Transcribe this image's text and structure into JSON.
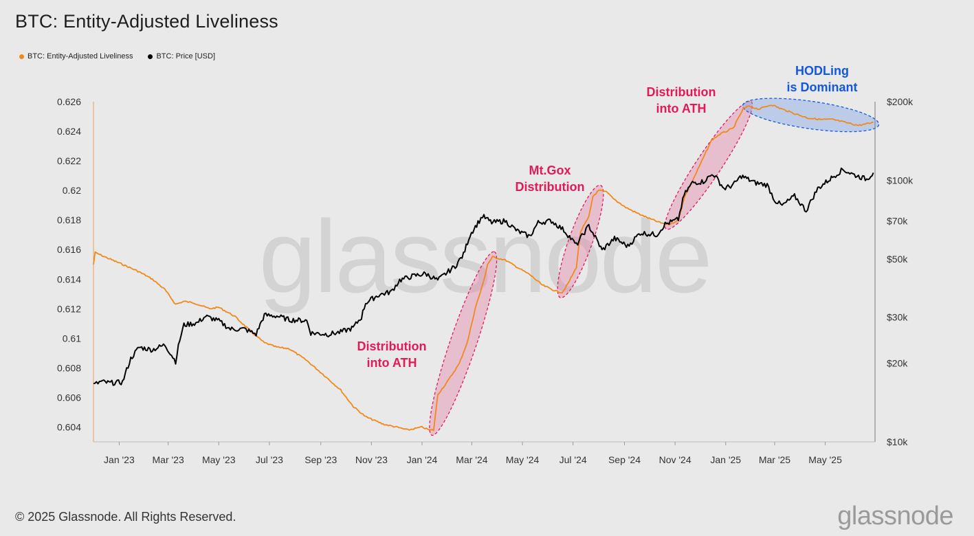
{
  "title": "BTC: Entity-Adjusted Liveliness",
  "legend": [
    {
      "label": "BTC: Entity-Adjusted Liveliness",
      "color": "#f0891a"
    },
    {
      "label": "BTC: Price [USD]",
      "color": "#000000"
    }
  ],
  "footer": "© 2025 Glassnode. All Rights Reserved.",
  "brand": "glassnode",
  "watermark": "glassnode",
  "chart_data": {
    "type": "line",
    "title": "BTC: Entity-Adjusted Liveliness",
    "x_ticks": [
      "Jan '23",
      "Mar '23",
      "May '23",
      "Jul '23",
      "Sep '23",
      "Nov '23",
      "Jan '24",
      "Mar '24",
      "May '24",
      "Jul '24",
      "Sep '24",
      "Nov '24",
      "Jan '25",
      "Mar '25",
      "May '25"
    ],
    "y_left_ticks": [
      "0.604",
      "0.606",
      "0.608",
      "0.61",
      "0.612",
      "0.614",
      "0.616",
      "0.618",
      "0.62",
      "0.622",
      "0.624",
      "0.626"
    ],
    "y_left_range": [
      0.603,
      0.626
    ],
    "y_right_ticks": [
      {
        "label": "$10k",
        "value": 10000
      },
      {
        "label": "$20k",
        "value": 20000
      },
      {
        "label": "$30k",
        "value": 30000
      },
      {
        "label": "$50k",
        "value": 50000
      },
      {
        "label": "$70k",
        "value": 70000
      },
      {
        "label": "$100k",
        "value": 100000
      },
      {
        "label": "$200k",
        "value": 200000
      }
    ],
    "y_right_scale": "log",
    "y_right_range": [
      10000,
      200000
    ],
    "grid": false,
    "legend_position": "top-left",
    "series": [
      {
        "name": "BTC: Entity-Adjusted Liveliness",
        "color": "#f0891a",
        "axis": "left",
        "points": [
          [
            "2022-12-01",
            0.615
          ],
          [
            "2022-12-03",
            0.6158
          ],
          [
            "2022-12-15",
            0.6155
          ],
          [
            "2023-01-05",
            0.615
          ],
          [
            "2023-01-25",
            0.6145
          ],
          [
            "2023-02-10",
            0.614
          ],
          [
            "2023-02-25",
            0.6133
          ],
          [
            "2023-03-10",
            0.6123
          ],
          [
            "2023-03-20",
            0.6125
          ],
          [
            "2023-04-01",
            0.6124
          ],
          [
            "2023-04-20",
            0.612
          ],
          [
            "2023-05-01",
            0.6121
          ],
          [
            "2023-05-20",
            0.6115
          ],
          [
            "2023-06-10",
            0.6104
          ],
          [
            "2023-06-25",
            0.6097
          ],
          [
            "2023-07-10",
            0.6094
          ],
          [
            "2023-07-25",
            0.6093
          ],
          [
            "2023-08-15",
            0.6085
          ],
          [
            "2023-09-05",
            0.6075
          ],
          [
            "2023-09-25",
            0.6065
          ],
          [
            "2023-10-10",
            0.6054
          ],
          [
            "2023-10-25",
            0.6047
          ],
          [
            "2023-11-15",
            0.6042
          ],
          [
            "2023-12-01",
            0.604
          ],
          [
            "2023-12-15",
            0.6038
          ],
          [
            "2024-01-01",
            0.604
          ],
          [
            "2024-01-10",
            0.6038
          ],
          [
            "2024-01-15",
            0.6038
          ],
          [
            "2024-01-20",
            0.6062
          ],
          [
            "2024-02-01",
            0.6071
          ],
          [
            "2024-02-15",
            0.6083
          ],
          [
            "2024-02-25",
            0.6098
          ],
          [
            "2024-03-05",
            0.612
          ],
          [
            "2024-03-15",
            0.6138
          ],
          [
            "2024-03-20",
            0.615
          ],
          [
            "2024-03-26",
            0.6155
          ],
          [
            "2024-04-10",
            0.6153
          ],
          [
            "2024-04-25",
            0.6148
          ],
          [
            "2024-05-10",
            0.6143
          ],
          [
            "2024-05-25",
            0.6136
          ],
          [
            "2024-06-10",
            0.6132
          ],
          [
            "2024-06-18",
            0.6131
          ],
          [
            "2024-06-25",
            0.6137
          ],
          [
            "2024-07-05",
            0.6148
          ],
          [
            "2024-07-10",
            0.6172
          ],
          [
            "2024-07-20",
            0.6182
          ],
          [
            "2024-07-25",
            0.6196
          ],
          [
            "2024-08-01",
            0.62
          ],
          [
            "2024-08-10",
            0.6199
          ],
          [
            "2024-08-20",
            0.6194
          ],
          [
            "2024-09-01",
            0.6189
          ],
          [
            "2024-09-15",
            0.6185
          ],
          [
            "2024-10-01",
            0.6181
          ],
          [
            "2024-10-15",
            0.6178
          ],
          [
            "2024-10-25",
            0.6177
          ],
          [
            "2024-11-05",
            0.618
          ],
          [
            "2024-11-12",
            0.6195
          ],
          [
            "2024-11-25",
            0.621
          ],
          [
            "2024-12-05",
            0.6222
          ],
          [
            "2024-12-15",
            0.6234
          ],
          [
            "2024-12-25",
            0.6238
          ],
          [
            "2025-01-10",
            0.6242
          ],
          [
            "2025-01-22",
            0.6255
          ],
          [
            "2025-01-28",
            0.6257
          ],
          [
            "2025-02-10",
            0.6255
          ],
          [
            "2025-02-25",
            0.6258
          ],
          [
            "2025-03-10",
            0.6255
          ],
          [
            "2025-03-25",
            0.6252
          ],
          [
            "2025-04-10",
            0.6249
          ],
          [
            "2025-04-25",
            0.6248
          ],
          [
            "2025-05-10",
            0.6248
          ],
          [
            "2025-05-25",
            0.6246
          ],
          [
            "2025-06-10",
            0.6244
          ],
          [
            "2025-06-20",
            0.6245
          ],
          [
            "2025-06-28",
            0.6246
          ]
        ]
      },
      {
        "name": "BTC: Price [USD]",
        "color": "#000000",
        "axis": "right",
        "points": [
          [
            "2022-12-01",
            16500
          ],
          [
            "2022-12-10",
            17000
          ],
          [
            "2022-12-20",
            16800
          ],
          [
            "2023-01-05",
            16900
          ],
          [
            "2023-01-15",
            20800
          ],
          [
            "2023-01-25",
            23000
          ],
          [
            "2023-02-10",
            22500
          ],
          [
            "2023-02-25",
            23500
          ],
          [
            "2023-03-10",
            20300
          ],
          [
            "2023-03-15",
            24500
          ],
          [
            "2023-03-20",
            28000
          ],
          [
            "2023-04-05",
            28500
          ],
          [
            "2023-04-15",
            30200
          ],
          [
            "2023-05-01",
            29000
          ],
          [
            "2023-05-15",
            27000
          ],
          [
            "2023-06-01",
            27000
          ],
          [
            "2023-06-15",
            25800
          ],
          [
            "2023-06-25",
            30500
          ],
          [
            "2023-07-10",
            30300
          ],
          [
            "2023-07-25",
            29300
          ],
          [
            "2023-08-15",
            29100
          ],
          [
            "2023-08-20",
            26100
          ],
          [
            "2023-09-10",
            25800
          ],
          [
            "2023-09-25",
            26300
          ],
          [
            "2023-10-10",
            27300
          ],
          [
            "2023-10-20",
            30000
          ],
          [
            "2023-10-25",
            34000
          ],
          [
            "2023-11-10",
            36500
          ],
          [
            "2023-11-25",
            37500
          ],
          [
            "2023-12-05",
            41500
          ],
          [
            "2023-12-20",
            43000
          ],
          [
            "2024-01-05",
            44000
          ],
          [
            "2024-01-20",
            41500
          ],
          [
            "2024-02-10",
            47000
          ],
          [
            "2024-02-20",
            52000
          ],
          [
            "2024-02-28",
            62000
          ],
          [
            "2024-03-10",
            70000
          ],
          [
            "2024-03-14",
            73000
          ],
          [
            "2024-03-25",
            69000
          ],
          [
            "2024-04-10",
            70000
          ],
          [
            "2024-04-25",
            64000
          ],
          [
            "2024-05-10",
            61000
          ],
          [
            "2024-05-20",
            69000
          ],
          [
            "2024-06-05",
            70000
          ],
          [
            "2024-06-20",
            64500
          ],
          [
            "2024-07-05",
            56500
          ],
          [
            "2024-07-20",
            67000
          ],
          [
            "2024-08-05",
            54000
          ],
          [
            "2024-08-20",
            60000
          ],
          [
            "2024-09-05",
            56000
          ],
          [
            "2024-09-20",
            63000
          ],
          [
            "2024-10-10",
            62000
          ],
          [
            "2024-10-20",
            68000
          ],
          [
            "2024-11-05",
            71000
          ],
          [
            "2024-11-12",
            88000
          ],
          [
            "2024-11-22",
            98000
          ],
          [
            "2024-12-05",
            99000
          ],
          [
            "2024-12-17",
            106000
          ],
          [
            "2024-12-30",
            93000
          ],
          [
            "2025-01-10",
            96000
          ],
          [
            "2025-01-20",
            104000
          ],
          [
            "2025-02-05",
            98000
          ],
          [
            "2025-02-20",
            96000
          ],
          [
            "2025-03-01",
            84000
          ],
          [
            "2025-03-10",
            80000
          ],
          [
            "2025-03-25",
            87000
          ],
          [
            "2025-04-08",
            76500
          ],
          [
            "2025-04-22",
            93000
          ],
          [
            "2025-05-10",
            103000
          ],
          [
            "2025-05-22",
            110000
          ],
          [
            "2025-06-05",
            105000
          ],
          [
            "2025-06-20",
            101000
          ],
          [
            "2025-06-28",
            107000
          ]
        ]
      }
    ],
    "annotations": [
      {
        "text": "Distribution\ninto ATH",
        "color": "#e11a58"
      },
      {
        "text": "Mt.Gox\nDistribution",
        "color": "#e11a58"
      },
      {
        "text": "Distribution\ninto ATH",
        "color": "#e11a58"
      },
      {
        "text": "HODLing\nis Dominant",
        "color": "#1257e0"
      }
    ]
  }
}
